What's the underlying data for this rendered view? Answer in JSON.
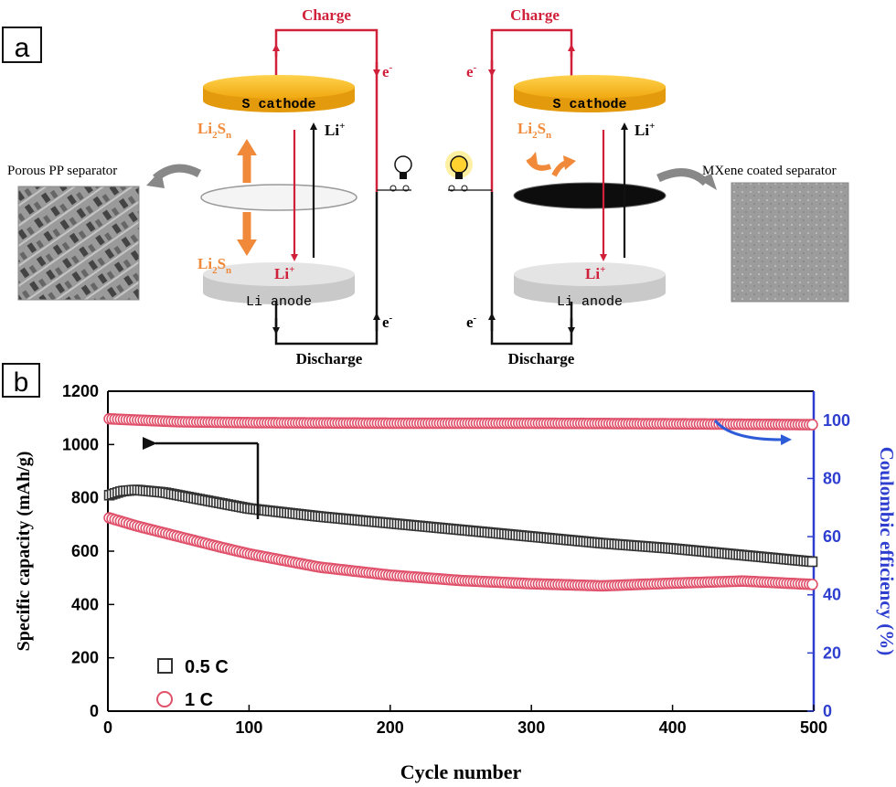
{
  "panel_a": {
    "label": "a",
    "left_cell": {
      "charge": "Charge",
      "discharge": "Discharge",
      "cathode": "S cathode",
      "anode": "Li anode",
      "electron": "e",
      "electron_sup": "-",
      "li_plus": "Li",
      "li_plus_sup": "+",
      "polysulfide": "Li",
      "polysulfide_sub1": "2",
      "polysulfide_mid": "S",
      "polysulfide_sub2": "n",
      "separator_caption": "Porous PP separator"
    },
    "right_cell": {
      "charge": "Charge",
      "discharge": "Discharge",
      "cathode": "S cathode",
      "anode": "Li anode",
      "electron": "e",
      "electron_sup": "-",
      "li_plus": "Li",
      "li_plus_sup": "+",
      "polysulfide": "Li",
      "polysulfide_sub1": "2",
      "polysulfide_mid": "S",
      "polysulfide_sub2": "n",
      "separator_caption": "MXene coated separator"
    },
    "colors": {
      "circuit": "#d0203a",
      "cathode": "#f7b717",
      "anode": "#d9d9d9",
      "polysulfide_arrow": "#f08a3a",
      "mxene": "#111111"
    }
  },
  "panel_b": {
    "label": "b",
    "legend": [
      {
        "label": "0.5 C",
        "marker": "square",
        "color": "#333333"
      },
      {
        "label": "1 C",
        "marker": "circle",
        "color": "#e0506a"
      }
    ],
    "colors": {
      "capacity_axis": "#000000",
      "efficiency_axis": "#2e3fd0",
      "curve_arrow": "#2e5bd8"
    }
  },
  "chart_data": {
    "type": "scatter",
    "xlabel": "Cycle number",
    "ylabel": "Specific capacity (mAh/g)",
    "y2label": "Coulombic efficiency (%)",
    "xlim": [
      0,
      500
    ],
    "ylim": [
      0,
      1200
    ],
    "y2lim": [
      0,
      110
    ],
    "x_ticks": [
      0,
      100,
      200,
      300,
      400,
      500
    ],
    "y_ticks": [
      0,
      200,
      400,
      600,
      800,
      1000,
      1200
    ],
    "y2_ticks": [
      0,
      20,
      40,
      60,
      80,
      100
    ],
    "series": [
      {
        "name": "0.5 C",
        "axis": "left",
        "marker": "square",
        "x": [
          1,
          10,
          20,
          40,
          60,
          80,
          100,
          150,
          200,
          250,
          300,
          350,
          400,
          450,
          500
        ],
        "y": [
          810,
          825,
          830,
          820,
          800,
          780,
          760,
          730,
          705,
          680,
          655,
          630,
          610,
          585,
          560
        ]
      },
      {
        "name": "1 C",
        "axis": "left",
        "marker": "circle",
        "x": [
          1,
          20,
          50,
          80,
          100,
          150,
          200,
          250,
          300,
          350,
          400,
          450,
          500
        ],
        "y": [
          725,
          695,
          655,
          615,
          590,
          540,
          510,
          490,
          478,
          470,
          480,
          488,
          475
        ]
      },
      {
        "name": "Coulombic efficiency",
        "axis": "right",
        "marker": "circle",
        "x": [
          1,
          50,
          100,
          200,
          300,
          400,
          500
        ],
        "y": [
          100.5,
          99.5,
          99.2,
          99.0,
          99.0,
          98.8,
          98.5
        ]
      }
    ]
  }
}
